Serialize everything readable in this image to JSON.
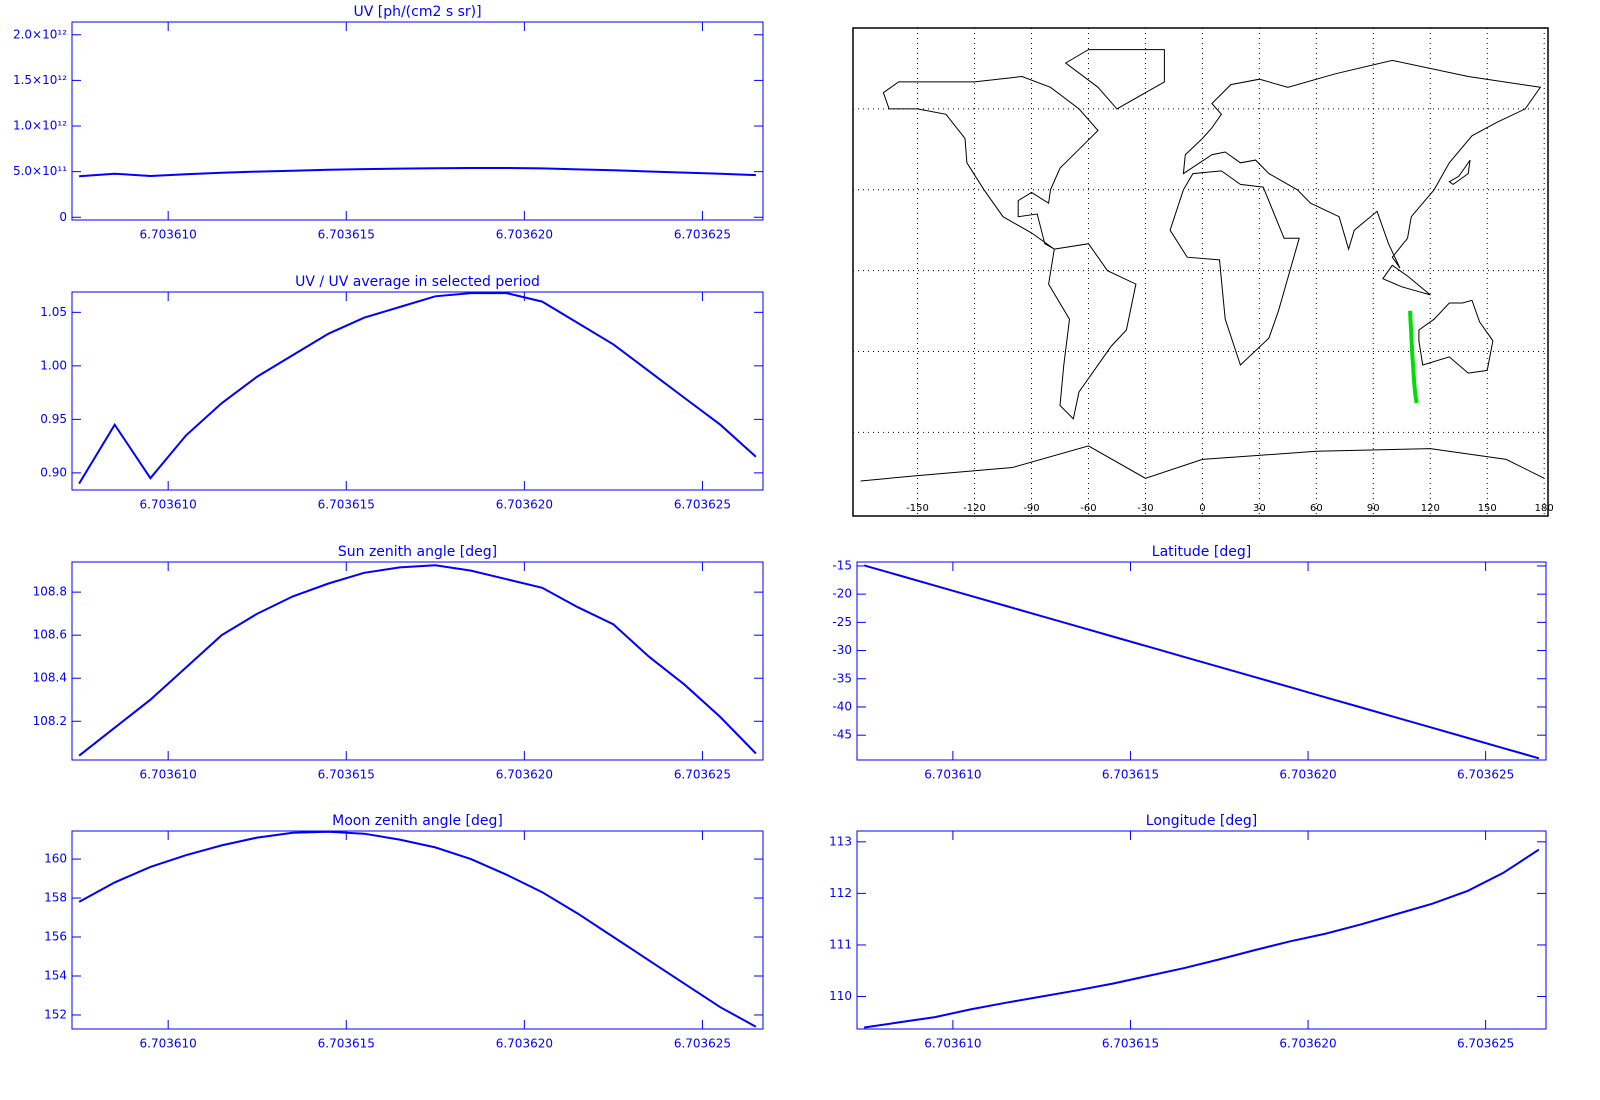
{
  "chart_data": [
    {
      "type": "line",
      "title": "UV [ph/(cm2 s sr)]",
      "color": "#0000ff",
      "x": [
        6.7036075,
        6.7036085,
        6.7036095,
        6.7036105,
        6.7036115,
        6.7036125,
        6.7036135,
        6.7036145,
        6.7036155,
        6.7036165,
        6.7036175,
        6.7036185,
        6.7036195,
        6.7036205,
        6.7036215,
        6.7036225,
        6.7036235,
        6.7036245,
        6.7036255,
        6.7036265
      ],
      "values": [
        449000000000,
        477000000000,
        452000000000,
        472000000000,
        487000000000,
        500000000000,
        510000000000,
        520000000000,
        528000000000,
        533000000000,
        538000000000,
        540000000000,
        540000000000,
        535000000000,
        525000000000,
        515000000000,
        502000000000,
        490000000000,
        477000000000,
        462000000000
      ],
      "xlim": [
        6.7036073,
        6.7036267
      ],
      "xticks": [
        {
          "value": 6.70361,
          "label": "6.703610"
        },
        {
          "value": 6.703615,
          "label": "6.703615"
        },
        {
          "value": 6.70362,
          "label": "6.703620"
        },
        {
          "value": 6.703625,
          "label": "6.703625"
        }
      ],
      "ylim": [
        -30000000000,
        2140000000000
      ],
      "yticks": [
        0,
        {
          "value": 500000000000,
          "label": "5.0×10¹¹"
        },
        {
          "value": 1000000000000,
          "label": "1.0×10¹²"
        },
        {
          "value": 1500000000000,
          "label": "1.5×10¹²"
        },
        {
          "value": 2000000000000,
          "label": "2.0×10¹²"
        }
      ]
    },
    {
      "type": "line",
      "title": "UV / UV average in selected period",
      "color": "#0000ff",
      "x": [
        6.7036075,
        6.7036085,
        6.7036095,
        6.7036105,
        6.7036115,
        6.7036125,
        6.7036135,
        6.7036145,
        6.7036155,
        6.7036165,
        6.7036175,
        6.7036185,
        6.7036195,
        6.7036205,
        6.7036215,
        6.7036225,
        6.7036235,
        6.7036245,
        6.7036255,
        6.7036265
      ],
      "values": [
        0.89,
        0.945,
        0.895,
        0.935,
        0.965,
        0.99,
        1.01,
        1.03,
        1.045,
        1.055,
        1.065,
        1.068,
        1.068,
        1.06,
        1.04,
        1.02,
        0.995,
        0.97,
        0.945,
        0.915
      ],
      "xlim": [
        6.7036073,
        6.7036267
      ],
      "xticks": [
        {
          "value": 6.70361,
          "label": "6.703610"
        },
        {
          "value": 6.703615,
          "label": "6.703615"
        },
        {
          "value": 6.70362,
          "label": "6.703620"
        },
        {
          "value": 6.703625,
          "label": "6.703625"
        }
      ],
      "ylim": [
        0.884,
        1.069
      ],
      "yticks": [
        {
          "value": 0.9,
          "label": "0.90"
        },
        0.95,
        {
          "value": 1,
          "label": "1.00"
        },
        1.05
      ]
    },
    {
      "type": "line",
      "title": "Sun zenith angle [deg]",
      "color": "#0000ff",
      "x": [
        6.7036075,
        6.7036085,
        6.7036095,
        6.7036105,
        6.7036115,
        6.7036125,
        6.7036135,
        6.7036145,
        6.7036155,
        6.7036165,
        6.7036175,
        6.7036185,
        6.7036195,
        6.7036205,
        6.7036215,
        6.7036225,
        6.7036235,
        6.7036245,
        6.7036255,
        6.7036265
      ],
      "values": [
        108.04,
        108.17,
        108.3,
        108.45,
        108.6,
        108.7,
        108.78,
        108.84,
        108.89,
        108.915,
        108.925,
        108.9,
        108.86,
        108.82,
        108.73,
        108.65,
        108.5,
        108.37,
        108.22,
        108.05
      ],
      "xlim": [
        6.7036073,
        6.7036267
      ],
      "xticks": [
        {
          "value": 6.70361,
          "label": "6.703610"
        },
        {
          "value": 6.703615,
          "label": "6.703615"
        },
        {
          "value": 6.70362,
          "label": "6.703620"
        },
        {
          "value": 6.703625,
          "label": "6.703625"
        }
      ],
      "ylim": [
        108.02,
        108.94
      ],
      "yticks": [
        108.2,
        108.4,
        108.6,
        108.8
      ]
    },
    {
      "type": "line",
      "title": "Moon zenith angle [deg]",
      "color": "#0000ff",
      "x": [
        6.7036075,
        6.7036085,
        6.7036095,
        6.7036105,
        6.7036115,
        6.7036125,
        6.7036135,
        6.7036145,
        6.7036155,
        6.7036165,
        6.7036175,
        6.7036185,
        6.7036195,
        6.7036205,
        6.7036215,
        6.7036225,
        6.7036235,
        6.7036245,
        6.7036255,
        6.7036265
      ],
      "values": [
        157.8,
        158.8,
        159.6,
        160.2,
        160.7,
        161.1,
        161.35,
        161.4,
        161.3,
        161.0,
        160.6,
        160.0,
        159.2,
        158.3,
        157.2,
        156.0,
        154.8,
        153.6,
        152.4,
        151.4
      ],
      "xlim": [
        6.7036073,
        6.7036267
      ],
      "xticks": [
        {
          "value": 6.70361,
          "label": "6.703610"
        },
        {
          "value": 6.703615,
          "label": "6.703615"
        },
        {
          "value": 6.70362,
          "label": "6.703620"
        },
        {
          "value": 6.703625,
          "label": "6.703625"
        }
      ],
      "ylim": [
        151.28,
        161.44
      ],
      "yticks": [
        152,
        154,
        156,
        158,
        160
      ]
    },
    {
      "type": "map",
      "color": "#00dd00",
      "xlim": [
        -184,
        182
      ],
      "xticks": [
        -150,
        -120,
        -90,
        -60,
        -30,
        0,
        30,
        60,
        90,
        120,
        150,
        180
      ],
      "ylim": [
        -91,
        90
      ],
      "yticks": [
        -60,
        -30,
        0,
        30,
        60
      ],
      "grid": true
    },
    {
      "type": "line",
      "title": "Latitude [deg]",
      "color": "#0000ff",
      "x": [
        6.7036075,
        6.7036085,
        6.7036095,
        6.7036105,
        6.7036115,
        6.7036125,
        6.7036135,
        6.7036145,
        6.7036155,
        6.7036165,
        6.7036175,
        6.7036185,
        6.7036195,
        6.7036205,
        6.7036215,
        6.7036225,
        6.7036235,
        6.7036245,
        6.7036255,
        6.7036265
      ],
      "values": [
        -14.9,
        -16.7,
        -18.5,
        -20.3,
        -22.1,
        -23.9,
        -25.7,
        -27.5,
        -29.3,
        -31.1,
        -32.9,
        -34.7,
        -36.5,
        -38.3,
        -40.1,
        -41.9,
        -43.7,
        -45.5,
        -47.3,
        -49.1
      ],
      "xlim": [
        6.7036073,
        6.7036267
      ],
      "xticks": [
        {
          "value": 6.70361,
          "label": "6.703610"
        },
        {
          "value": 6.703615,
          "label": "6.703615"
        },
        {
          "value": 6.70362,
          "label": "6.703620"
        },
        {
          "value": 6.703625,
          "label": "6.703625"
        }
      ],
      "ylim": [
        -49.4,
        -14.3
      ],
      "yticks": [
        -45,
        -40,
        -35,
        -30,
        -25,
        -20,
        -15
      ]
    },
    {
      "type": "line",
      "title": "Longitude [deg]",
      "color": "#0000ff",
      "x": [
        6.7036075,
        6.7036085,
        6.7036095,
        6.7036105,
        6.7036115,
        6.7036125,
        6.7036135,
        6.7036145,
        6.7036155,
        6.7036165,
        6.7036175,
        6.7036185,
        6.7036195,
        6.7036205,
        6.7036215,
        6.7036225,
        6.7036235,
        6.7036245,
        6.7036255,
        6.7036265
      ],
      "values": [
        109.4,
        109.5,
        109.6,
        109.75,
        109.88,
        110.0,
        110.12,
        110.25,
        110.4,
        110.55,
        110.72,
        110.9,
        111.07,
        111.22,
        111.4,
        111.6,
        111.8,
        112.05,
        112.4,
        112.85
      ],
      "xlim": [
        6.7036073,
        6.7036267
      ],
      "xticks": [
        {
          "value": 6.70361,
          "label": "6.703610"
        },
        {
          "value": 6.703615,
          "label": "6.703615"
        },
        {
          "value": 6.70362,
          "label": "6.703620"
        },
        {
          "value": 6.703625,
          "label": "6.703625"
        }
      ],
      "ylim": [
        109.37,
        113.21
      ],
      "yticks": [
        110,
        111,
        112,
        113
      ]
    }
  ]
}
